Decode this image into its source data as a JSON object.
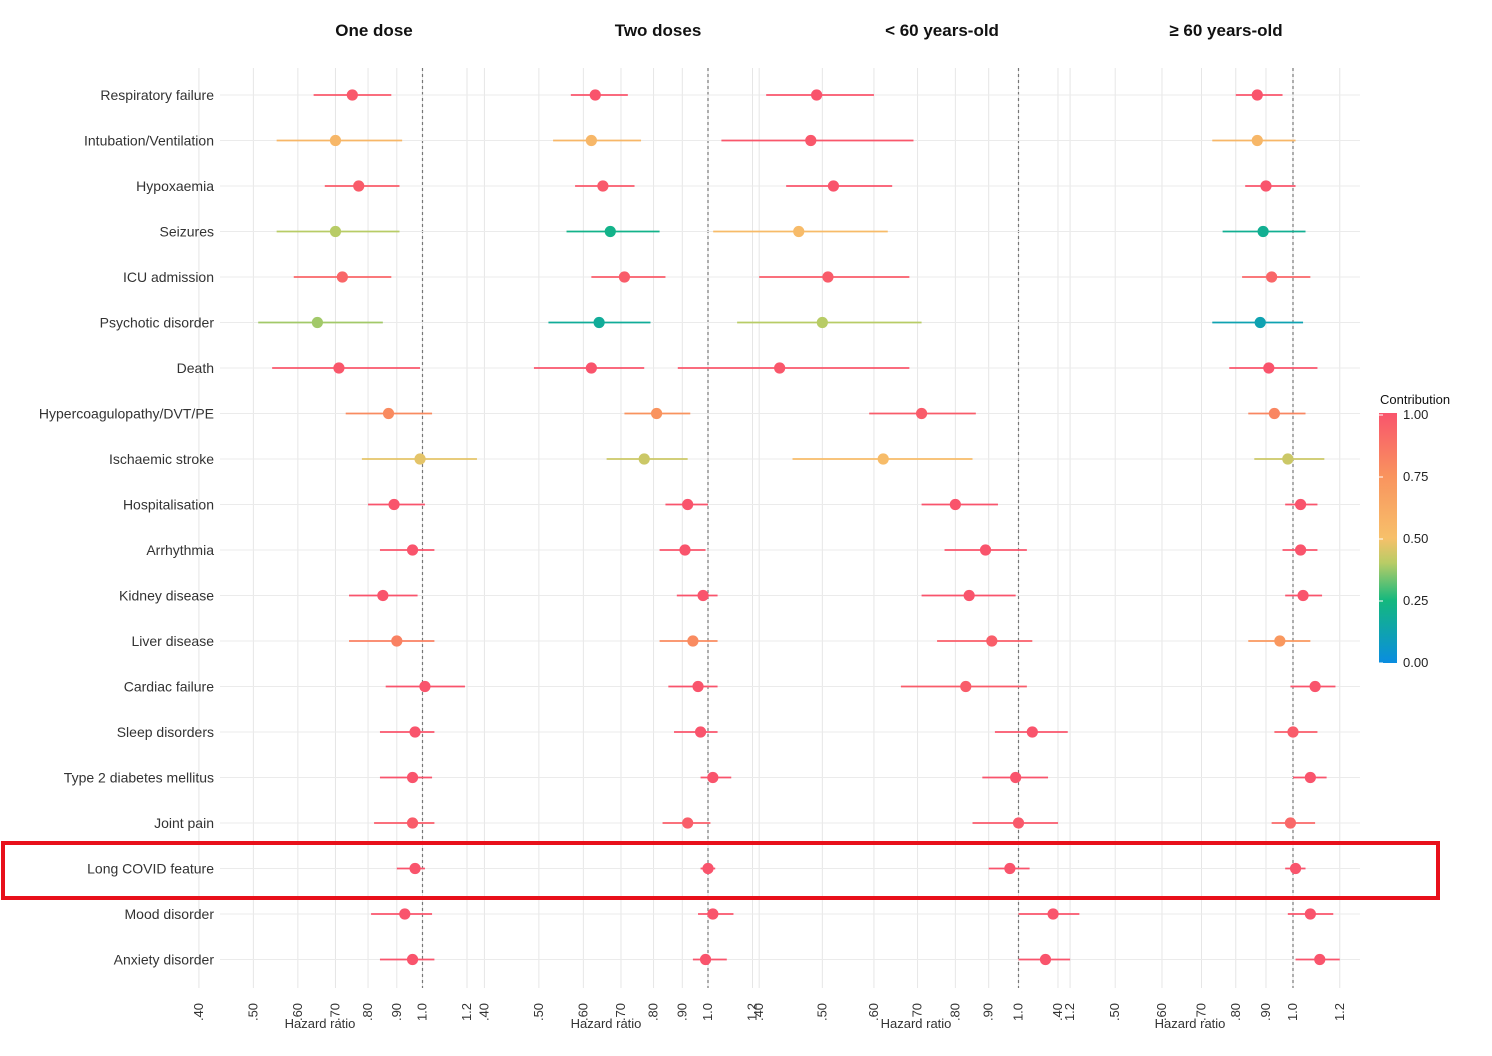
{
  "chart_data": {
    "type": "forest",
    "panels": [
      {
        "title": "One dose",
        "xlabel": "Hazard ratio"
      },
      {
        "title": "Two doses",
        "xlabel": "Hazard ratio"
      },
      {
        "title": "< 60 years-old",
        "xlabel": "Hazard ratio"
      },
      {
        "title": "≥ 60 years-old",
        "xlabel": "Hazard ratio"
      }
    ],
    "x_ticks": [
      {
        "value": 0.4,
        "label": ".40"
      },
      {
        "value": 0.5,
        "label": ".50"
      },
      {
        "value": 0.6,
        "label": ".60"
      },
      {
        "value": 0.7,
        "label": ".70"
      },
      {
        "value": 0.8,
        "label": ".80"
      },
      {
        "value": 0.9,
        "label": ".90"
      },
      {
        "value": 1.0,
        "label": "1.0"
      },
      {
        "value": 1.2,
        "label": "1.2"
      }
    ],
    "reference_value": 1.0,
    "outcomes": [
      "Respiratory failure",
      "Intubation/Ventilation",
      "Hypoxaemia",
      "Seizures",
      "ICU admission",
      "Psychotic disorder",
      "Death",
      "Hypercoagulopathy/DVT/PE",
      "Ischaemic stroke",
      "Hospitalisation",
      "Arrhythmia",
      "Kidney disease",
      "Liver disease",
      "Cardiac failure",
      "Sleep disorders",
      "Type 2 diabetes mellitus",
      "Joint pain",
      "Long COVID feature",
      "Mood disorder",
      "Anxiety disorder"
    ],
    "highlighted_outcome": "Long COVID feature",
    "series": [
      {
        "panel": "One dose",
        "estimates": [
          {
            "hr": 0.75,
            "lo": 0.64,
            "hi": 0.88,
            "contribution": 0.98
          },
          {
            "hr": 0.7,
            "lo": 0.55,
            "hi": 0.92,
            "contribution": 0.55
          },
          {
            "hr": 0.77,
            "lo": 0.67,
            "hi": 0.91,
            "contribution": 0.97
          },
          {
            "hr": 0.7,
            "lo": 0.55,
            "hi": 0.91,
            "contribution": 0.4
          },
          {
            "hr": 0.72,
            "lo": 0.59,
            "hi": 0.88,
            "contribution": 0.93
          },
          {
            "hr": 0.65,
            "lo": 0.51,
            "hi": 0.85,
            "contribution": 0.38
          },
          {
            "hr": 0.71,
            "lo": 0.54,
            "hi": 0.99,
            "contribution": 0.99
          },
          {
            "hr": 0.87,
            "lo": 0.73,
            "hi": 1.04,
            "contribution": 0.78
          },
          {
            "hr": 0.99,
            "lo": 0.78,
            "hi": 1.25,
            "contribution": 0.47
          },
          {
            "hr": 0.89,
            "lo": 0.8,
            "hi": 1.01,
            "contribution": 1.0
          },
          {
            "hr": 0.96,
            "lo": 0.84,
            "hi": 1.05,
            "contribution": 1.0
          },
          {
            "hr": 0.85,
            "lo": 0.74,
            "hi": 0.98,
            "contribution": 1.0
          },
          {
            "hr": 0.9,
            "lo": 0.74,
            "hi": 1.05,
            "contribution": 0.82
          },
          {
            "hr": 1.01,
            "lo": 0.86,
            "hi": 1.19,
            "contribution": 1.0
          },
          {
            "hr": 0.97,
            "lo": 0.84,
            "hi": 1.05,
            "contribution": 1.0
          },
          {
            "hr": 0.96,
            "lo": 0.84,
            "hi": 1.04,
            "contribution": 1.0
          },
          {
            "hr": 0.96,
            "lo": 0.82,
            "hi": 1.05,
            "contribution": 0.97
          },
          {
            "hr": 0.97,
            "lo": 0.9,
            "hi": 1.01,
            "contribution": 1.0
          },
          {
            "hr": 0.93,
            "lo": 0.81,
            "hi": 1.04,
            "contribution": 1.0
          },
          {
            "hr": 0.96,
            "lo": 0.84,
            "hi": 1.05,
            "contribution": 1.0
          }
        ]
      },
      {
        "panel": "Two doses",
        "estimates": [
          {
            "hr": 0.63,
            "lo": 0.57,
            "hi": 0.72,
            "contribution": 1.0
          },
          {
            "hr": 0.62,
            "lo": 0.53,
            "hi": 0.76,
            "contribution": 0.55
          },
          {
            "hr": 0.65,
            "lo": 0.58,
            "hi": 0.74,
            "contribution": 0.98
          },
          {
            "hr": 0.67,
            "lo": 0.56,
            "hi": 0.82,
            "contribution": 0.22
          },
          {
            "hr": 0.71,
            "lo": 0.62,
            "hi": 0.84,
            "contribution": 0.97
          },
          {
            "hr": 0.64,
            "lo": 0.52,
            "hi": 0.79,
            "contribution": 0.18
          },
          {
            "hr": 0.62,
            "lo": 0.49,
            "hi": 0.77,
            "contribution": 1.0
          },
          {
            "hr": 0.81,
            "lo": 0.71,
            "hi": 0.93,
            "contribution": 0.75
          },
          {
            "hr": 0.77,
            "lo": 0.66,
            "hi": 0.92,
            "contribution": 0.43
          },
          {
            "hr": 0.92,
            "lo": 0.84,
            "hi": 1.0,
            "contribution": 1.0
          },
          {
            "hr": 0.91,
            "lo": 0.82,
            "hi": 0.99,
            "contribution": 1.0
          },
          {
            "hr": 0.98,
            "lo": 0.88,
            "hi": 1.04,
            "contribution": 1.0
          },
          {
            "hr": 0.94,
            "lo": 0.82,
            "hi": 1.04,
            "contribution": 0.78
          },
          {
            "hr": 0.96,
            "lo": 0.85,
            "hi": 1.04,
            "contribution": 1.0
          },
          {
            "hr": 0.97,
            "lo": 0.87,
            "hi": 1.04,
            "contribution": 1.0
          },
          {
            "hr": 1.02,
            "lo": 0.97,
            "hi": 1.1,
            "contribution": 1.0
          },
          {
            "hr": 0.92,
            "lo": 0.83,
            "hi": 1.01,
            "contribution": 0.96
          },
          {
            "hr": 1.0,
            "lo": 0.97,
            "hi": 1.03,
            "contribution": 1.0
          },
          {
            "hr": 1.02,
            "lo": 0.96,
            "hi": 1.11,
            "contribution": 1.0
          },
          {
            "hr": 0.99,
            "lo": 0.94,
            "hi": 1.08,
            "contribution": 1.0
          }
        ]
      },
      {
        "panel": "< 60 years-old",
        "estimates": [
          {
            "hr": 0.49,
            "lo": 0.41,
            "hi": 0.6,
            "contribution": 1.0
          },
          {
            "hr": 0.48,
            "lo": 0.35,
            "hi": 0.69,
            "contribution": 0.99
          },
          {
            "hr": 0.52,
            "lo": 0.44,
            "hi": 0.64,
            "contribution": 1.0
          },
          {
            "hr": 0.46,
            "lo": 0.34,
            "hi": 0.63,
            "contribution": 0.53
          },
          {
            "hr": 0.51,
            "lo": 0.4,
            "hi": 0.68,
            "contribution": 0.97
          },
          {
            "hr": 0.5,
            "lo": 0.37,
            "hi": 0.71,
            "contribution": 0.4
          },
          {
            "hr": 0.43,
            "lo": 0.3,
            "hi": 0.68,
            "contribution": 0.99
          },
          {
            "hr": 0.71,
            "lo": 0.59,
            "hi": 0.86,
            "contribution": 0.97
          },
          {
            "hr": 0.62,
            "lo": 0.45,
            "hi": 0.85,
            "contribution": 0.52
          },
          {
            "hr": 0.8,
            "lo": 0.71,
            "hi": 0.93,
            "contribution": 1.0
          },
          {
            "hr": 0.89,
            "lo": 0.77,
            "hi": 1.03,
            "contribution": 1.0
          },
          {
            "hr": 0.84,
            "lo": 0.71,
            "hi": 0.99,
            "contribution": 1.0
          },
          {
            "hr": 0.91,
            "lo": 0.75,
            "hi": 1.05,
            "contribution": 0.96
          },
          {
            "hr": 0.83,
            "lo": 0.66,
            "hi": 1.03,
            "contribution": 0.97
          },
          {
            "hr": 1.05,
            "lo": 0.92,
            "hi": 1.19,
            "contribution": 1.0
          },
          {
            "hr": 0.99,
            "lo": 0.88,
            "hi": 1.11,
            "contribution": 1.0
          },
          {
            "hr": 1.0,
            "lo": 0.85,
            "hi": 1.15,
            "contribution": 0.98
          },
          {
            "hr": 0.97,
            "lo": 0.9,
            "hi": 1.04,
            "contribution": 1.0
          },
          {
            "hr": 1.13,
            "lo": 1.0,
            "hi": 1.24,
            "contribution": 1.0
          },
          {
            "hr": 1.1,
            "lo": 1.0,
            "hi": 1.2,
            "contribution": 1.0
          }
        ]
      },
      {
        "panel": "≥ 60 years-old",
        "estimates": [
          {
            "hr": 0.87,
            "lo": 0.8,
            "hi": 0.96,
            "contribution": 1.0
          },
          {
            "hr": 0.87,
            "lo": 0.73,
            "hi": 1.01,
            "contribution": 0.55
          },
          {
            "hr": 0.9,
            "lo": 0.83,
            "hi": 1.01,
            "contribution": 1.0
          },
          {
            "hr": 0.89,
            "lo": 0.76,
            "hi": 1.05,
            "contribution": 0.2
          },
          {
            "hr": 0.92,
            "lo": 0.82,
            "hi": 1.07,
            "contribution": 0.93
          },
          {
            "hr": 0.88,
            "lo": 0.73,
            "hi": 1.04,
            "contribution": 0.12
          },
          {
            "hr": 0.91,
            "lo": 0.78,
            "hi": 1.1,
            "contribution": 1.0
          },
          {
            "hr": 0.93,
            "lo": 0.84,
            "hi": 1.05,
            "contribution": 0.8
          },
          {
            "hr": 0.98,
            "lo": 0.86,
            "hi": 1.13,
            "contribution": 0.43
          },
          {
            "hr": 1.03,
            "lo": 0.97,
            "hi": 1.1,
            "contribution": 1.0
          },
          {
            "hr": 1.03,
            "lo": 0.96,
            "hi": 1.1,
            "contribution": 1.0
          },
          {
            "hr": 1.04,
            "lo": 0.97,
            "hi": 1.12,
            "contribution": 1.0
          },
          {
            "hr": 0.95,
            "lo": 0.84,
            "hi": 1.07,
            "contribution": 0.72
          },
          {
            "hr": 1.09,
            "lo": 0.99,
            "hi": 1.18,
            "contribution": 1.0
          },
          {
            "hr": 1.0,
            "lo": 0.93,
            "hi": 1.1,
            "contribution": 0.97
          },
          {
            "hr": 1.07,
            "lo": 1.0,
            "hi": 1.14,
            "contribution": 1.0
          },
          {
            "hr": 0.99,
            "lo": 0.92,
            "hi": 1.09,
            "contribution": 0.92
          },
          {
            "hr": 1.01,
            "lo": 0.97,
            "hi": 1.05,
            "contribution": 1.0
          },
          {
            "hr": 1.07,
            "lo": 0.98,
            "hi": 1.17,
            "contribution": 1.0
          },
          {
            "hr": 1.11,
            "lo": 1.01,
            "hi": 1.2,
            "contribution": 1.0
          }
        ]
      }
    ],
    "legend": {
      "title": "Contribution",
      "ticks": [
        "1.00",
        "0.75",
        "0.50",
        "0.25",
        "0.00"
      ],
      "position": "right",
      "colors": [
        "#0a8de0",
        "#14b87e",
        "#b8cc66",
        "#f7c06a",
        "#f9935e",
        "#f9546c"
      ]
    }
  }
}
